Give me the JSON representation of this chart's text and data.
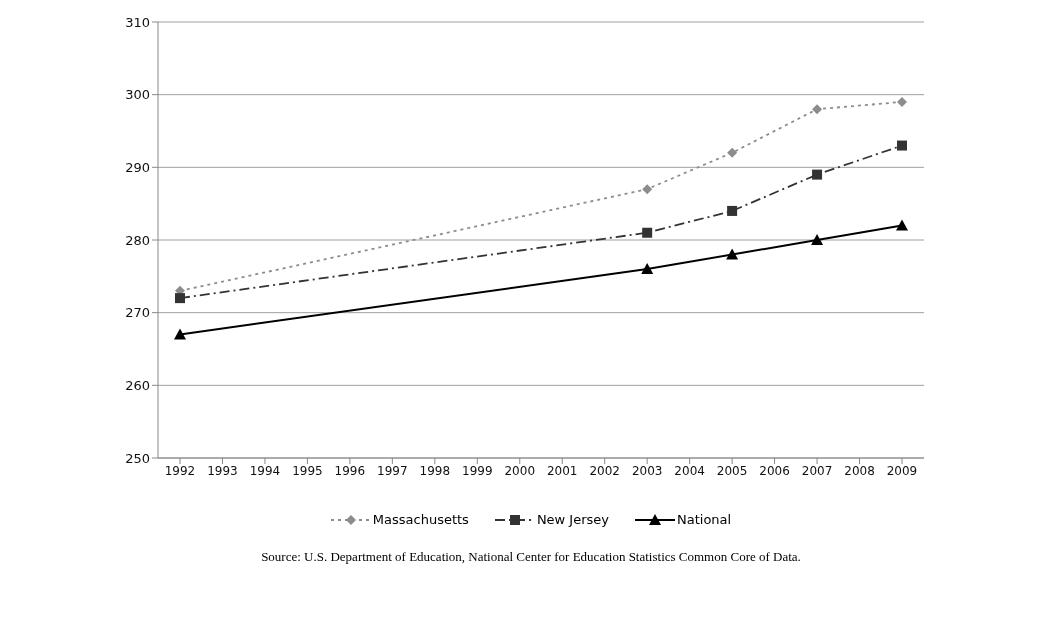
{
  "chart_data": {
    "type": "line",
    "categories": [
      "1992",
      "1993",
      "1994",
      "1995",
      "1996",
      "1997",
      "1998",
      "1999",
      "2000",
      "2001",
      "2002",
      "2003",
      "2004",
      "2005",
      "2006",
      "2007",
      "2008",
      "2009"
    ],
    "series": [
      {
        "name": "Massachusetts",
        "color": "#8c8c8c",
        "marker": "diamond",
        "line_style": "dotted",
        "values": [
          273,
          null,
          null,
          null,
          null,
          null,
          null,
          null,
          null,
          null,
          null,
          287,
          null,
          292,
          null,
          298,
          null,
          299
        ]
      },
      {
        "name": "New Jersey",
        "color": "#333333",
        "marker": "square",
        "line_style": "dashed",
        "values": [
          272,
          null,
          null,
          null,
          null,
          null,
          null,
          null,
          null,
          null,
          null,
          281,
          null,
          284,
          null,
          289,
          null,
          293
        ]
      },
      {
        "name": "National",
        "color": "#000000",
        "marker": "triangle",
        "line_style": "solid",
        "values": [
          267,
          null,
          null,
          null,
          null,
          null,
          null,
          null,
          null,
          null,
          null,
          276,
          null,
          278,
          null,
          280,
          null,
          282
        ]
      }
    ],
    "ylim": [
      250,
      310
    ],
    "yticks": [
      250,
      260,
      270,
      280,
      290,
      300,
      310
    ],
    "grid": "y",
    "legend": "bottom",
    "annotations": [
      "Source: U.S. Department of Education, National Center for Education Statistics Common Core of Data."
    ]
  }
}
